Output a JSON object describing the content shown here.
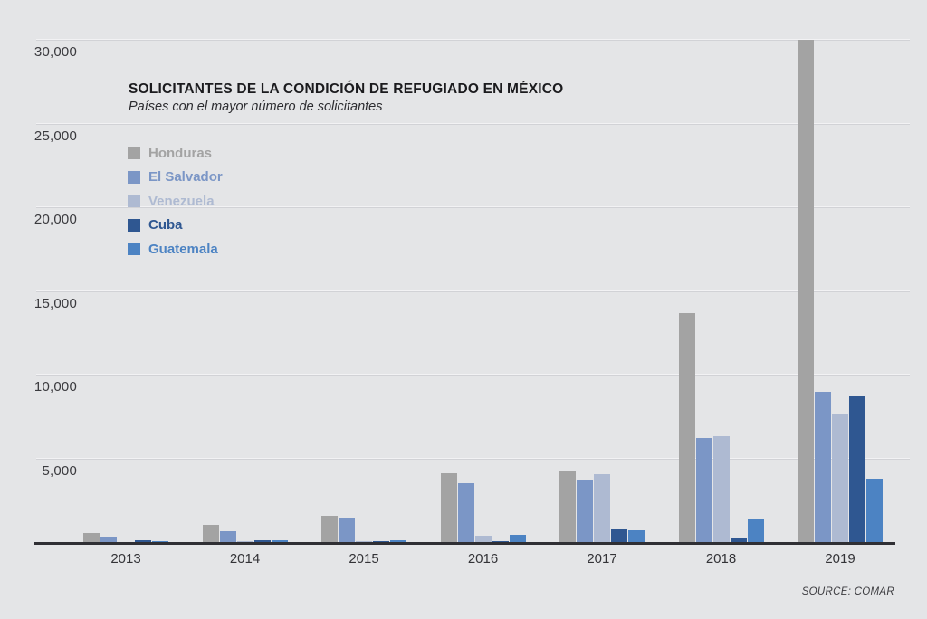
{
  "chart_data": {
    "type": "bar",
    "title": "SOLICITANTES DE LA CONDICIÓN DE REFUGIADO EN MÉXICO",
    "subtitle": "Países con el mayor número de solicitantes",
    "source": "SOURCE: COMAR",
    "categories": [
      "2013",
      "2014",
      "2015",
      "2016",
      "2017",
      "2018",
      "2019"
    ],
    "series": [
      {
        "name": "Honduras",
        "color": "#a3a3a3",
        "values": [
          530,
          1035,
          1560,
          4129,
          4272,
          13679,
          30045
        ]
      },
      {
        "name": "El Salvador",
        "color": "#7b96c6",
        "values": [
          309,
          626,
          1476,
          3493,
          3708,
          6193,
          8994
        ]
      },
      {
        "name": "Venezuela",
        "color": "#aebad2",
        "values": [
          1,
          56,
          57,
          361,
          4042,
          6327,
          7662
        ]
      },
      {
        "name": "Cuba",
        "color": "#2f5791",
        "values": [
          98,
          96,
          37,
          43,
          796,
          214,
          8679
        ]
      },
      {
        "name": "Guatemala",
        "color": "#4c83c3",
        "values": [
          47,
          108,
          102,
          437,
          676,
          1347,
          3758
        ]
      }
    ],
    "ylim": [
      0,
      30000
    ],
    "yticks": [
      {
        "value": 30000,
        "label": "30,000"
      },
      {
        "value": 25000,
        "label": "25,000"
      },
      {
        "value": 20000,
        "label": "20,000"
      },
      {
        "value": 15000,
        "label": "15,000"
      },
      {
        "value": 10000,
        "label": "10,000"
      },
      {
        "value": 5000,
        "label": "5,000"
      }
    ],
    "grid": true,
    "legend_position": "upper-left",
    "bar_clipped_at_top": "Honduras 2019"
  },
  "colors": {
    "background": "#e4e5e7",
    "axis": "#2f2f34",
    "gridline": "#d1d2d6",
    "title_text": "#1b1b1e",
    "tick_text": "#3a3a3e"
  }
}
